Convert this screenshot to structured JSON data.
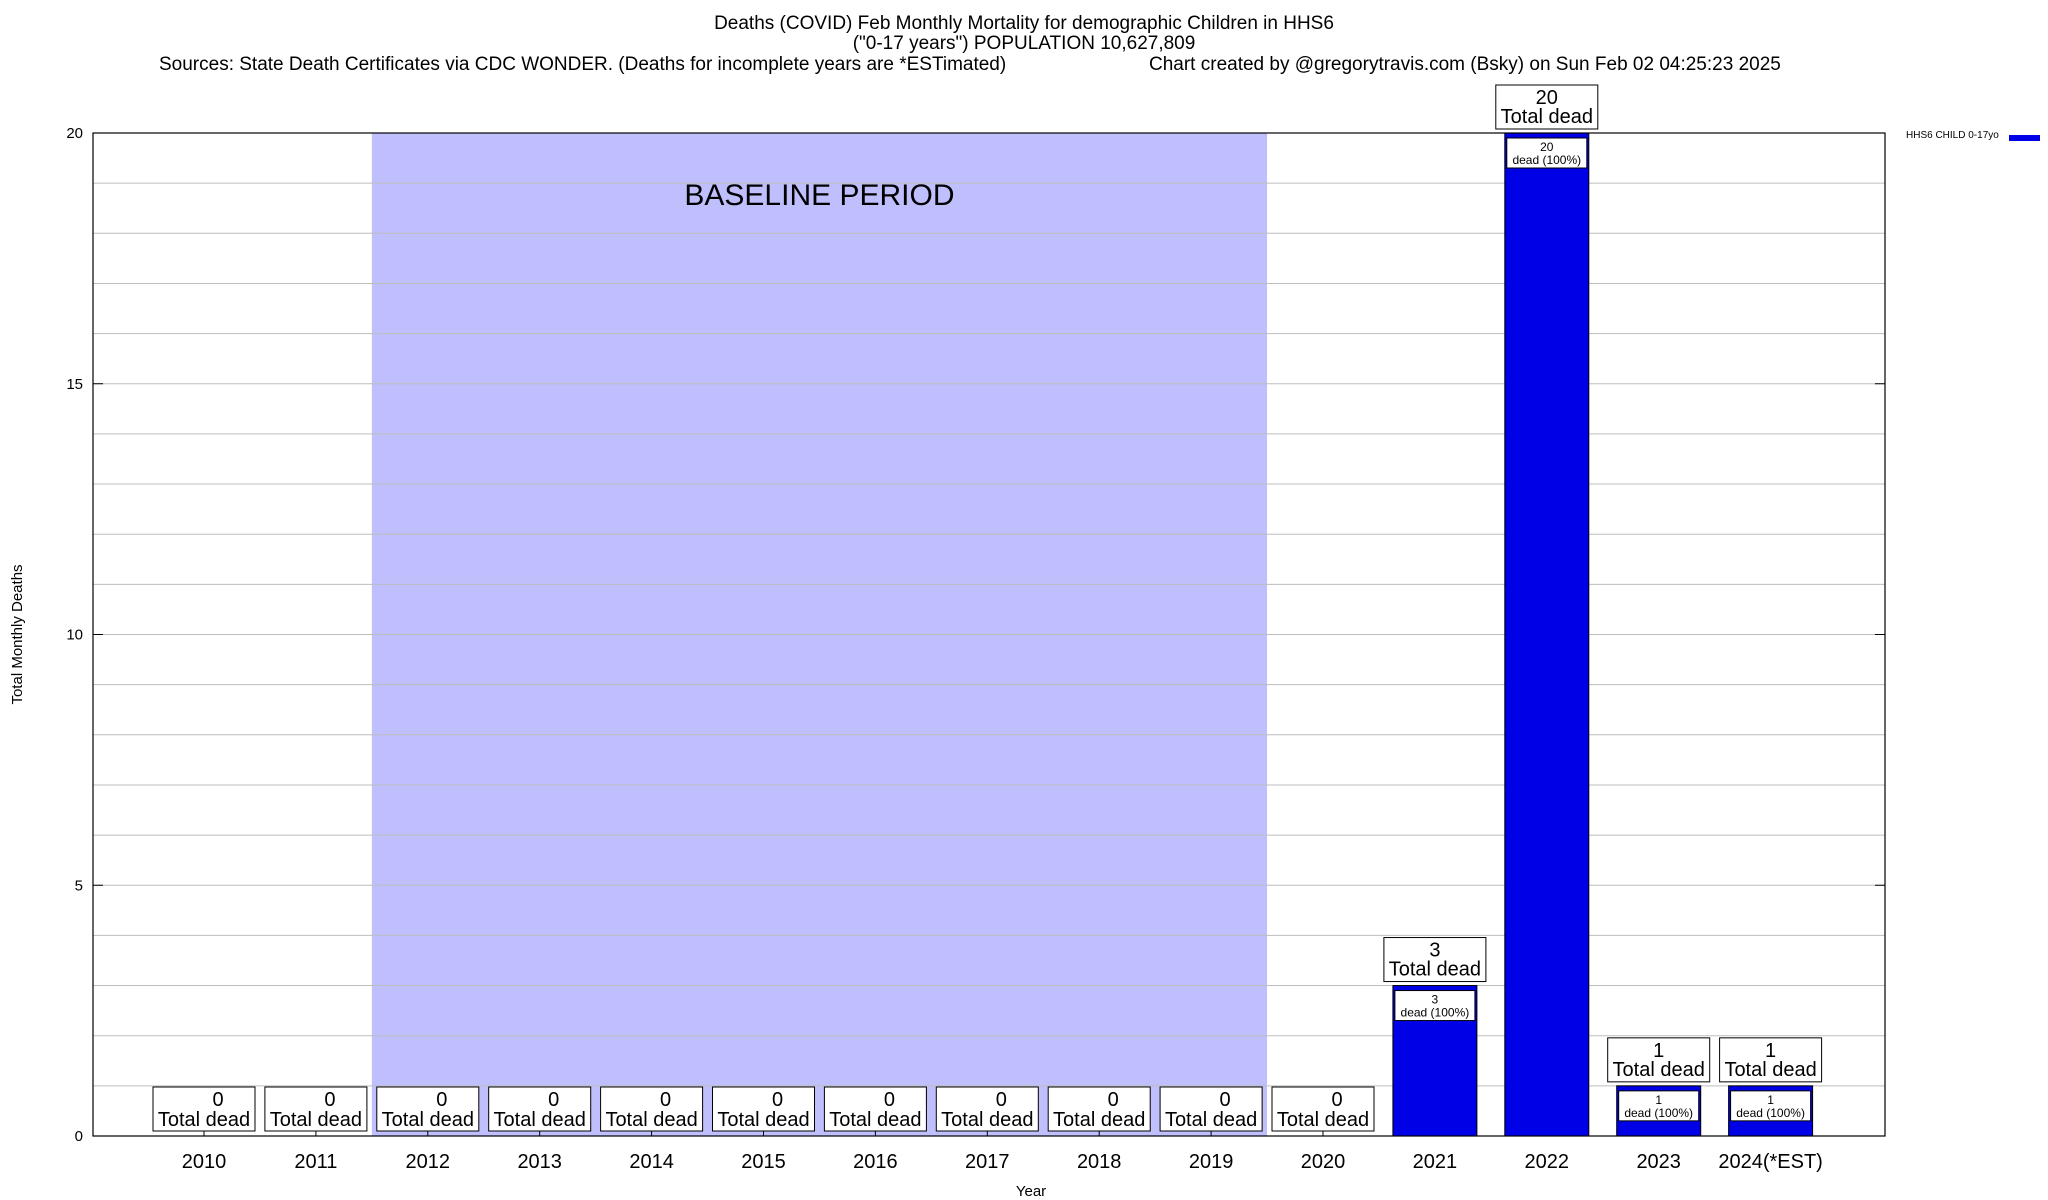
{
  "header": {
    "title_line1": "Deaths (COVID) Feb Monthly Mortality for demographic Children in HHS6",
    "title_line2": "(\"0-17 years\") POPULATION 10,627,809",
    "sources": "Sources: State Death Certificates via CDC WONDER. (Deaths for incomplete years are *ESTimated)",
    "credit": "Chart created by @gregorytravis.com (Bsky) on Sun Feb 02 04:25:23 2025"
  },
  "chart_data": {
    "type": "bar",
    "categories": [
      "2010",
      "2011",
      "2012",
      "2013",
      "2014",
      "2015",
      "2016",
      "2017",
      "2018",
      "2019",
      "2020",
      "2021",
      "2022",
      "2023",
      "2024(*EST)"
    ],
    "series": [
      {
        "name": "HHS6 CHILD 0-17yo",
        "values": [
          0,
          0,
          0,
          0,
          0,
          0,
          0,
          0,
          0,
          0,
          0,
          3,
          20,
          1,
          1
        ]
      }
    ],
    "xlabel": "Year",
    "ylabel": "Total Monthly Deaths",
    "ylim": [
      0,
      20
    ],
    "yticks": [
      0,
      5,
      10,
      15,
      20
    ],
    "grid": true,
    "legend_position": "top-right",
    "total_label_text": "Total dead",
    "inner_label_text": "dead (100%)",
    "baseline": {
      "label": "BASELINE PERIOD",
      "start": "2012",
      "end": "2019"
    },
    "colors": {
      "bar": "#0000e6",
      "baseline": "#bfbffe",
      "grid": "#bdbdbd"
    }
  }
}
